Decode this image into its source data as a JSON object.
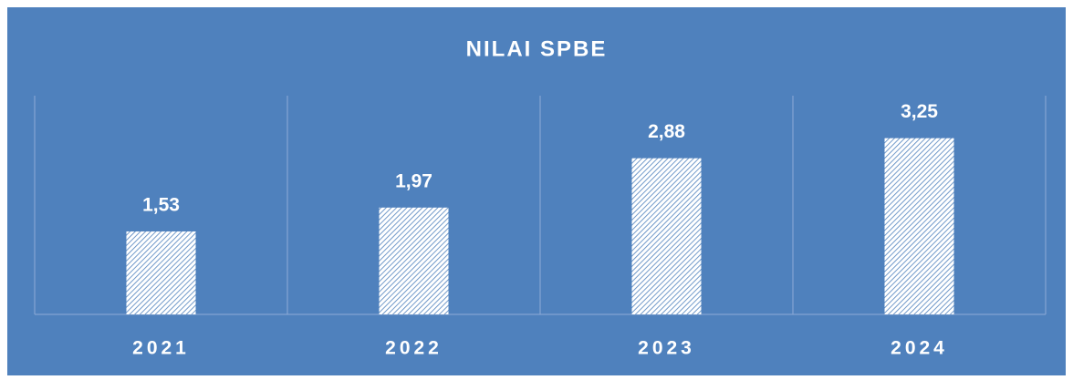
{
  "chart_data": {
    "type": "bar",
    "title": "NILAI SPBE",
    "categories": [
      "2021",
      "2022",
      "2023",
      "2024"
    ],
    "values": [
      1.53,
      1.97,
      2.88,
      3.25
    ],
    "value_labels": [
      "1,53",
      "1,97",
      "2,88",
      "3,25"
    ],
    "color": "#ffffff",
    "ylim": [
      0,
      4
    ]
  }
}
